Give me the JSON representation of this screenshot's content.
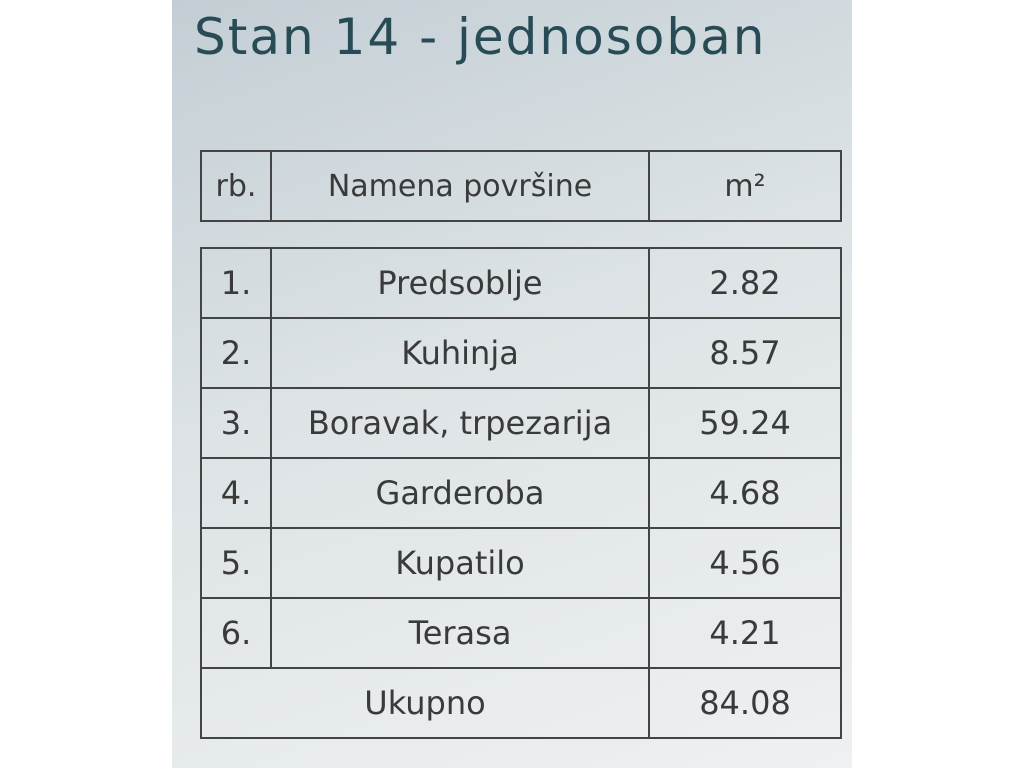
{
  "title": "Stan 14 - jednosoban",
  "table": {
    "header": [
      "rb.",
      "Namena površine",
      "m²"
    ],
    "rows": [
      [
        "1.",
        "Predsoblje",
        "2.82"
      ],
      [
        "2.",
        "Kuhinja",
        "8.57"
      ],
      [
        "3.",
        "Boravak, trpezarija",
        "59.24"
      ],
      [
        "4.",
        "Garderoba",
        "4.68"
      ],
      [
        "5.",
        "Kupatilo",
        "4.56"
      ],
      [
        "6.",
        "Terasa",
        "4.21"
      ]
    ],
    "total": {
      "label": "Ukupno",
      "value": "84.08"
    }
  }
}
